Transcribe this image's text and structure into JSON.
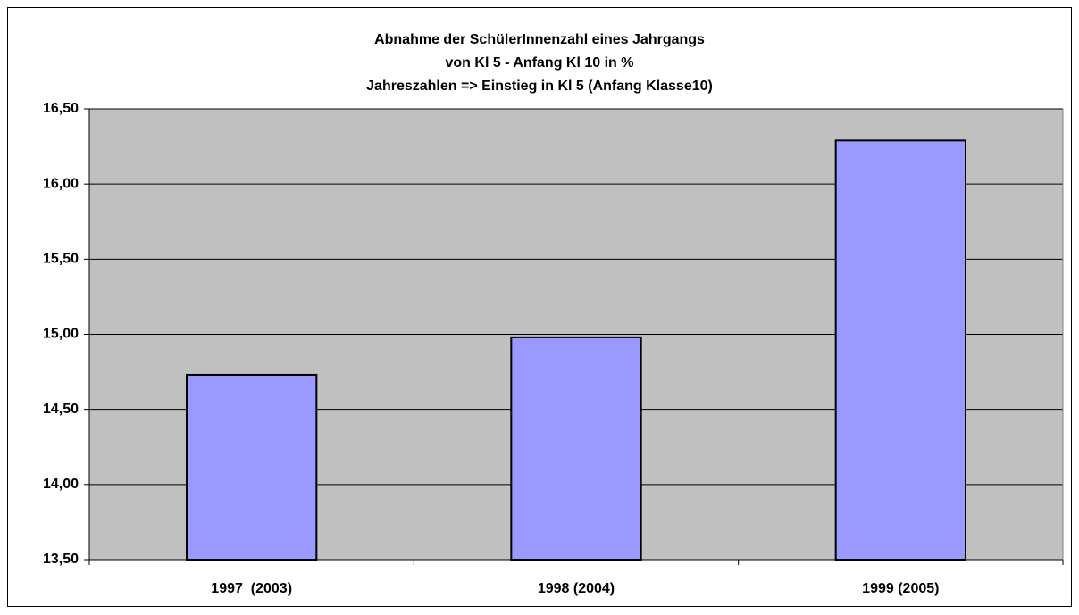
{
  "chart_data": {
    "type": "bar",
    "title": [
      "Abnahme der SchülerInnenzahl eines Jahrgangs",
      "von Kl 5 - Anfang Kl 10 in %",
      "Jahreszahlen => Einstieg in Kl 5 (Anfang Klasse10)"
    ],
    "categories": [
      "1997  (2003)",
      "1998 (2004)",
      "1999 (2005)"
    ],
    "values": [
      14.73,
      14.98,
      16.29
    ],
    "color": "#9999ff",
    "ylim": [
      13.5,
      16.5
    ],
    "yticks": [
      {
        "value": 13.5,
        "label": "13,50"
      },
      {
        "value": 14,
        "label": "14,00"
      },
      {
        "value": 14.5,
        "label": "14,50"
      },
      {
        "value": 15,
        "label": "15,00"
      },
      {
        "value": 15.5,
        "label": "15,50"
      },
      {
        "value": 16,
        "label": "16,00"
      },
      {
        "value": 16.5,
        "label": "16,50"
      }
    ],
    "grid": true
  }
}
